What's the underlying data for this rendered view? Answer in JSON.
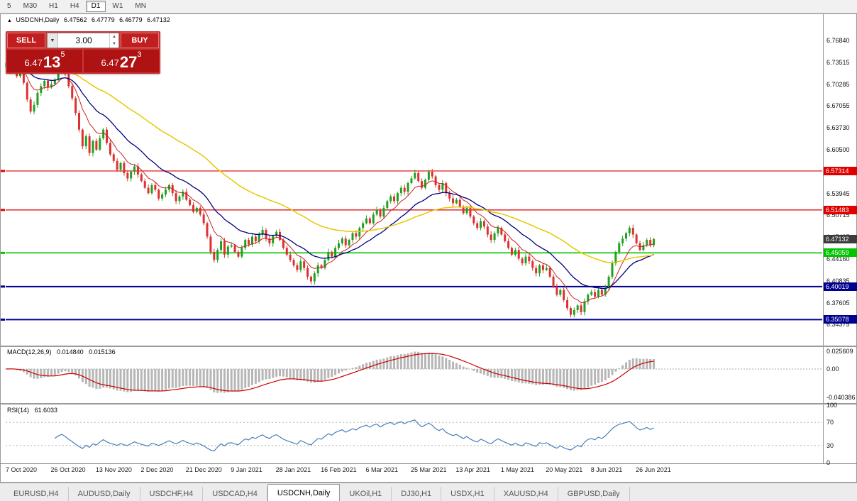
{
  "toolbar": {
    "timeframes": [
      "5",
      "M30",
      "H1",
      "H4",
      "D1",
      "W1",
      "MN"
    ],
    "active": "D1"
  },
  "chart_header": {
    "expand_icon": "▲",
    "symbol": "USDCNH,Daily",
    "open": "6.47562",
    "high": "6.47779",
    "low": "6.46779",
    "close": "6.47132"
  },
  "trade_panel": {
    "sell_label": "SELL",
    "buy_label": "BUY",
    "volume": "3.00",
    "dropdown_icon": "▼",
    "spin_up_icon": "▲",
    "spin_down_icon": "▼",
    "sell_price": {
      "base": "6.47",
      "big": "13",
      "sup": "5"
    },
    "buy_price": {
      "base": "6.47",
      "big": "27",
      "sup": "3"
    },
    "colors": {
      "panel": "#c93535",
      "button": "#c11f1f",
      "price_bg": "#ae1212"
    }
  },
  "price_axis": {
    "labels": [
      "6.76840",
      "6.73515",
      "6.70285",
      "6.67055",
      "6.63730",
      "6.60500",
      "6.57270",
      "6.53945",
      "6.50715",
      "6.47485",
      "6.44160",
      "6.40835",
      "6.37605",
      "6.34375"
    ]
  },
  "current_price_tag": {
    "label": "6.47132",
    "value": 6.47132,
    "bg": "#3c3c3c"
  },
  "macd_pane": {
    "title": "MACD(12,26,9)",
    "main_value": "0.014840",
    "signal_value": "0.015136",
    "axis_labels": [
      "0.025609",
      "0.00",
      "-0.040386"
    ],
    "histogram_color": "#b6b6b6",
    "signal_color": "#cc0000"
  },
  "rsi_pane": {
    "title": "RSI(14)",
    "value": "61.6033",
    "axis_labels": [
      "100",
      "70",
      "30",
      "0"
    ],
    "line_color": "#4a7ebb",
    "level_lines": [
      70,
      30
    ]
  },
  "date_axis": [
    "7 Oct 2020",
    "26 Oct 2020",
    "13 Nov 2020",
    "2 Dec 2020",
    "21 Dec 2020",
    "9 Jan 2021",
    "28 Jan 2021",
    "16 Feb 2021",
    "6 Mar 2021",
    "25 Mar 2021",
    "13 Apr 2021",
    "1 May 2021",
    "20 May 2021",
    "8 Jun 2021",
    "26 Jun 2021"
  ],
  "tabs": {
    "items": [
      "EURUSD,H4",
      "AUDUSD,Daily",
      "USDCHF,H4",
      "USDCAD,H4",
      "USDCNH,Daily",
      "UKOil,H1",
      "DJ30,H1",
      "USDX,H1",
      "XAUUSD,H4",
      "GBPUSD,Daily"
    ],
    "active": "USDCNH,Daily"
  },
  "chart_data": {
    "type": "candlestick",
    "title": "USDCNH Daily",
    "x_tick_labels": [
      "7 Oct 2020",
      "26 Oct 2020",
      "13 Nov 2020",
      "2 Dec 2020",
      "21 Dec 2020",
      "9 Jan 2021",
      "28 Jan 2021",
      "16 Feb 2021",
      "6 Mar 2021",
      "25 Mar 2021",
      "13 Apr 2021",
      "1 May 2021",
      "20 May 2021",
      "8 Jun 2021",
      "26 Jun 2021"
    ],
    "bars_per_tick": 13,
    "ylim": [
      6.34375,
      6.7684
    ],
    "first_open": 6.728,
    "closes": [
      6.735,
      6.742,
      6.728,
      6.715,
      6.72,
      6.705,
      6.68,
      6.662,
      6.672,
      6.69,
      6.7,
      6.708,
      6.698,
      6.703,
      6.71,
      6.722,
      6.73,
      6.718,
      6.7,
      6.682,
      6.66,
      6.635,
      6.61,
      6.625,
      6.6,
      6.618,
      6.605,
      6.622,
      6.635,
      6.615,
      6.598,
      6.588,
      6.575,
      6.585,
      6.57,
      6.562,
      6.572,
      6.58,
      6.568,
      6.558,
      6.548,
      6.54,
      6.552,
      6.545,
      6.532,
      6.538,
      6.545,
      6.552,
      6.54,
      6.528,
      6.535,
      6.542,
      6.53,
      6.522,
      6.512,
      6.518,
      6.508,
      6.495,
      6.475,
      6.452,
      6.44,
      6.455,
      6.468,
      6.448,
      6.46,
      6.462,
      6.452,
      6.445,
      6.458,
      6.47,
      6.463,
      6.475,
      6.468,
      6.478,
      6.485,
      6.472,
      6.465,
      6.476,
      6.482,
      6.47,
      6.458,
      6.448,
      6.44,
      6.432,
      6.425,
      6.438,
      6.428,
      6.415,
      6.408,
      6.42,
      6.432,
      6.428,
      6.44,
      6.452,
      6.445,
      6.458,
      6.465,
      6.472,
      6.462,
      6.47,
      6.48,
      6.475,
      6.488,
      6.495,
      6.502,
      6.495,
      6.508,
      6.515,
      6.505,
      6.518,
      6.528,
      6.535,
      6.528,
      6.54,
      6.548,
      6.542,
      6.555,
      6.562,
      6.57,
      6.558,
      6.548,
      6.56,
      6.572,
      6.565,
      6.552,
      6.545,
      6.555,
      6.54,
      6.532,
      6.525,
      6.53,
      6.52,
      6.51,
      6.518,
      6.505,
      6.495,
      6.488,
      6.498,
      6.49,
      6.478,
      6.47,
      6.48,
      6.488,
      6.478,
      6.468,
      6.458,
      6.448,
      6.455,
      6.442,
      6.435,
      6.445,
      6.438,
      6.428,
      6.42,
      6.432,
      6.425,
      6.428,
      6.415,
      6.4,
      6.388,
      6.395,
      6.38,
      6.368,
      6.358,
      6.365,
      6.372,
      6.362,
      6.378,
      6.388,
      6.392,
      6.385,
      6.395,
      6.388,
      6.398,
      6.415,
      6.435,
      6.452,
      6.465,
      6.472,
      6.48,
      6.488,
      6.478,
      6.465,
      6.455,
      6.462,
      6.47,
      6.462,
      6.4713
    ],
    "up_color": "#1fa11f",
    "down_color": "#dd3030",
    "levels": [
      {
        "value": 6.57314,
        "label": "6.57314",
        "color": "#e00000",
        "width": 1.2
      },
      {
        "value": 6.51483,
        "label": "6.51483",
        "color": "#e00000",
        "width": 1.2
      },
      {
        "value": 6.45059,
        "label": "6.45059",
        "color": "#00c400",
        "width": 1.6
      },
      {
        "value": 6.40019,
        "label": "6.40019",
        "color": "#000090",
        "width": 2
      },
      {
        "value": 6.35078,
        "label": "6.35078",
        "color": "#000090",
        "width": 2
      }
    ],
    "moving_averages": [
      {
        "period": 8,
        "color": "#cc2222",
        "width": 1
      },
      {
        "period": 20,
        "color": "#000080",
        "width": 1.3
      },
      {
        "period": 55,
        "color": "#e8c800",
        "width": 1.5
      }
    ],
    "macd": {
      "fast": 12,
      "slow": 26,
      "signal": 9,
      "current_main": 0.01484,
      "current_signal": 0.015136,
      "scale_max": 0.025609,
      "scale_min": -0.040386
    },
    "rsi": {
      "period": 14,
      "current": 61.6033,
      "levels": [
        70,
        30
      ]
    }
  }
}
